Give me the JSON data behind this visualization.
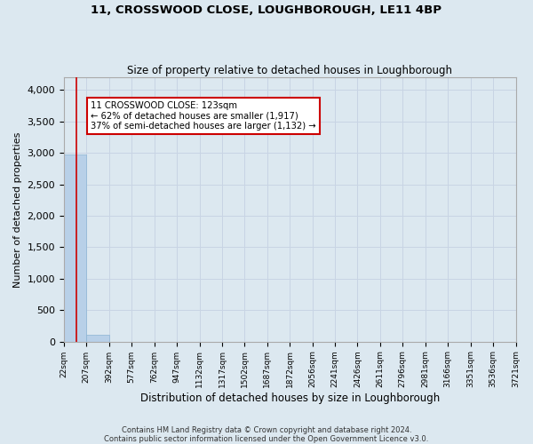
{
  "title": "11, CROSSWOOD CLOSE, LOUGHBOROUGH, LE11 4BP",
  "subtitle": "Size of property relative to detached houses in Loughborough",
  "xlabel": "Distribution of detached houses by size in Loughborough",
  "ylabel": "Number of detached properties",
  "bin_edges": [
    22,
    207,
    392,
    577,
    762,
    947,
    1132,
    1317,
    1502,
    1687,
    1872,
    2056,
    2241,
    2426,
    2611,
    2796,
    2981,
    3166,
    3351,
    3536,
    3721
  ],
  "bar_heights": [
    2980,
    110,
    0,
    0,
    0,
    0,
    0,
    0,
    0,
    0,
    0,
    0,
    0,
    0,
    0,
    0,
    0,
    0,
    0,
    0
  ],
  "bar_color": "#b8d0e8",
  "bar_edge_color": "#8ab4d4",
  "ylim": [
    0,
    4200
  ],
  "yticks": [
    0,
    500,
    1000,
    1500,
    2000,
    2500,
    3000,
    3500,
    4000
  ],
  "red_line_x": 123,
  "annotation_title": "11 CROSSWOOD CLOSE: 123sqm",
  "annotation_line1": "← 62% of detached houses are smaller (1,917)",
  "annotation_line2": "37% of semi-detached houses are larger (1,132) →",
  "annotation_box_color": "#ffffff",
  "annotation_border_color": "#cc0000",
  "red_line_color": "#cc0000",
  "grid_color": "#c8d4e4",
  "bg_color": "#dce8f0",
  "footer_line1": "Contains HM Land Registry data © Crown copyright and database right 2024.",
  "footer_line2": "Contains public sector information licensed under the Open Government Licence v3.0."
}
